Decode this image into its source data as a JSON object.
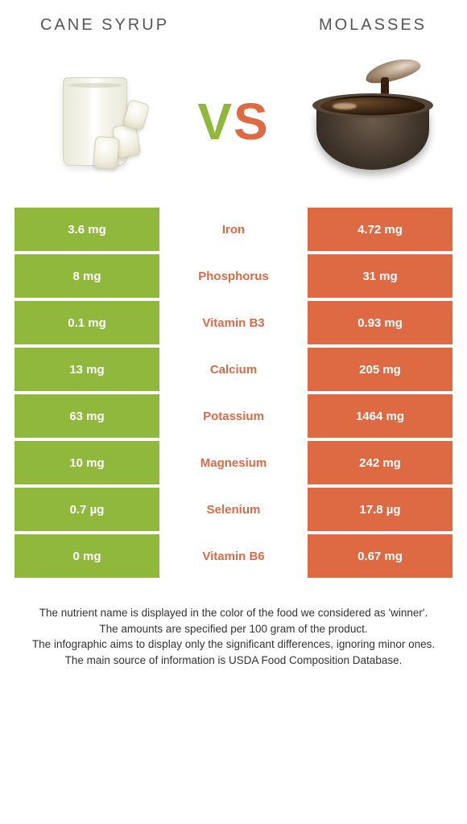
{
  "header": {
    "left_title": "cane syrup",
    "right_title": "molasses"
  },
  "vs": {
    "v": "V",
    "s": "S"
  },
  "colors": {
    "left": "#8fb83c",
    "right": "#de6a44",
    "nutrient_winner_right": "#de6a44"
  },
  "rows": [
    {
      "left": "3.6 mg",
      "nutrient": "Iron",
      "right": "4.72 mg",
      "winner": "right"
    },
    {
      "left": "8 mg",
      "nutrient": "Phosphorus",
      "right": "31 mg",
      "winner": "right"
    },
    {
      "left": "0.1 mg",
      "nutrient": "Vitamin B3",
      "right": "0.93 mg",
      "winner": "right"
    },
    {
      "left": "13 mg",
      "nutrient": "Calcium",
      "right": "205 mg",
      "winner": "right"
    },
    {
      "left": "63 mg",
      "nutrient": "Potassium",
      "right": "1464 mg",
      "winner": "right"
    },
    {
      "left": "10 mg",
      "nutrient": "Magnesium",
      "right": "242 mg",
      "winner": "right"
    },
    {
      "left": "0.7 µg",
      "nutrient": "Selenium",
      "right": "17.8 µg",
      "winner": "right"
    },
    {
      "left": "0 mg",
      "nutrient": "Vitamin B6",
      "right": "0.67 mg",
      "winner": "right"
    }
  ],
  "footer": {
    "line1": "The nutrient name is displayed in the color of the food we considered as 'winner'.",
    "line2": "The amounts are specified per 100 gram of the product.",
    "line3": "The infographic aims to display only the significant differences, ignoring minor ones.",
    "line4": "The main source of information is USDA Food Composition Database."
  }
}
